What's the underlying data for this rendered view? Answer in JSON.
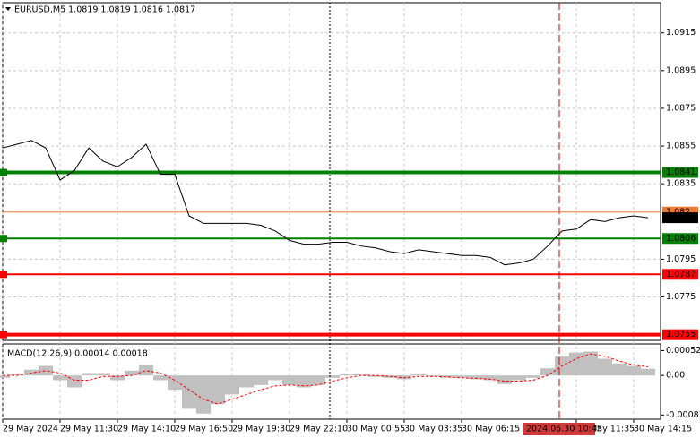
{
  "chart_data": {
    "type": "line",
    "title": "EURUSD,M5  1.0819 1.0819 1.0816 1.0817",
    "categories": [
      "29 May 2024",
      null,
      null,
      null,
      "29 May 11:30",
      null,
      null,
      null,
      "29 May 14:10",
      null,
      null,
      null,
      "29 May 16:50",
      null,
      null,
      null,
      "29 May 19:30",
      null,
      null,
      null,
      "29 May 22:10",
      null,
      null,
      null,
      "30 May 00:55",
      null,
      null,
      null,
      "30 May 03:35",
      null,
      null,
      null,
      "30 May 06:15",
      null,
      null,
      null,
      null,
      null,
      null,
      null,
      "30 May 11:35",
      null,
      null,
      null,
      "30 May 14:15",
      null
    ],
    "values": [
      1.0854,
      1.0856,
      1.0858,
      1.0854,
      1.0837,
      1.0842,
      1.0854,
      1.0847,
      1.0844,
      1.0849,
      1.0856,
      1.084,
      1.084,
      1.0818,
      1.0814,
      1.0814,
      1.0814,
      1.0814,
      1.0813,
      1.081,
      1.0805,
      1.0803,
      1.0803,
      1.0804,
      1.0804,
      1.0802,
      1.0801,
      1.0799,
      1.0798,
      1.08,
      1.0799,
      1.0798,
      1.0797,
      1.0797,
      1.0796,
      1.0792,
      1.0793,
      1.0795,
      1.0802,
      1.081,
      1.0811,
      1.0816,
      1.0815,
      1.0817,
      1.0818,
      1.0817
    ],
    "color": "#000000",
    "ylim": [
      1.0752,
      1.0931
    ],
    "yticks": [
      1.0915,
      1.0895,
      1.0875,
      1.0855,
      1.0835,
      1.0795,
      1.0775
    ],
    "grid": true,
    "levels": [
      {
        "value": 1.0841,
        "color": "#008000",
        "width": 4
      },
      {
        "value": 1.0806,
        "color": "#008000",
        "width": 2
      },
      {
        "value": 1.0787,
        "color": "#ff0000",
        "width": 2
      },
      {
        "value": 1.0755,
        "color": "#ff0000",
        "width": 4
      }
    ],
    "ask": {
      "value": 1.082,
      "color": "#f07830"
    },
    "crosshair_label": "2024.05.30 10:45",
    "macd": {
      "title": "MACD(12,26,9) 0.00014 0.00018",
      "histogram": [
        -5e-05,
        2e-05,
        0.00012,
        0.0002,
        -0.0001,
        -0.00025,
        5e-05,
        5e-05,
        -0.0001,
        0.0001,
        0.00022,
        -0.0001,
        -0.0003,
        -0.0007,
        -0.0008,
        -0.0006,
        -0.0004,
        -0.00025,
        -0.0002,
        -0.0001,
        -0.0002,
        -0.00025,
        -0.0002,
        -5e-05,
        2e-05,
        2e-05,
        -3e-05,
        -5e-05,
        -8e-05,
        2e-05,
        -2e-05,
        -5e-05,
        -5e-05,
        -8e-05,
        -0.0001,
        -0.00018,
        -0.0001,
        -5e-05,
        0.00015,
        0.0004,
        0.00048,
        0.0005,
        0.00035,
        0.00025,
        0.0002,
        0.00014
      ],
      "signal": [
        0,
        0,
        5e-05,
        0.0001,
        5e-05,
        -0.0001,
        -0.0001,
        -2e-05,
        -2e-05,
        0,
        0.0001,
        5e-05,
        -0.0001,
        -0.0003,
        -0.0005,
        -0.0006,
        -0.0005,
        -0.0004,
        -0.0003,
        -0.00022,
        -0.0002,
        -0.00022,
        -0.0002,
        -0.00012,
        -5e-05,
        0,
        0,
        -2e-05,
        -5e-05,
        -2e-05,
        -2e-05,
        -3e-05,
        -5e-05,
        -6e-05,
        -8e-05,
        -0.00012,
        -0.00012,
        -0.0001,
        0,
        0.0002,
        0.00035,
        0.00045,
        0.0004,
        0.0003,
        0.00022,
        0.00018
      ],
      "histogram_color": "#c0c0c0",
      "signal_color": "#ff0000",
      "ylim": [
        -0.00088,
        0.00066
      ],
      "yticks": [
        0.00052,
        {
          "value": 0,
          "label": "0.00"
        },
        -0.00083
      ]
    }
  }
}
